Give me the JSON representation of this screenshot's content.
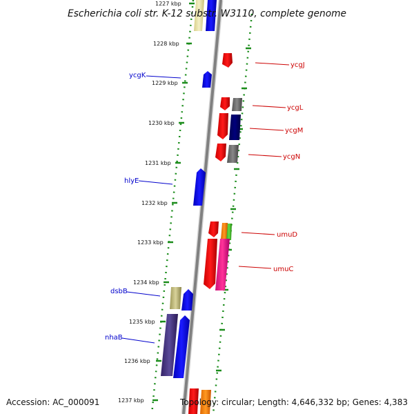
{
  "title": "Escherichia coli str. K-12 substr. W3110, complete genome",
  "footer": {
    "accession": "Accession: AC_000091",
    "summary": "Topology: circular; Length: 4,646,332 bp; Genes: 4,383"
  },
  "scale_labels": [
    "1227 kbp",
    "1228 kbp",
    "1229 kbp",
    "1230 kbp",
    "1231 kbp",
    "1232 kbp",
    "1233 kbp",
    "1234 kbp",
    "1235 kbp",
    "1236 kbp",
    "1237 kbp"
  ],
  "genes_left": [
    {
      "name": "ycgK",
      "color": "#0000cc"
    },
    {
      "name": "hlyE",
      "color": "#0000cc"
    },
    {
      "name": "dsbB",
      "color": "#0000cc"
    },
    {
      "name": "nhaB",
      "color": "#0000cc"
    }
  ],
  "genes_right": [
    {
      "name": "ycgJ",
      "color": "#cc0000"
    },
    {
      "name": "ycgL",
      "color": "#cc0000"
    },
    {
      "name": "ycgM",
      "color": "#cc0000"
    },
    {
      "name": "ycgN",
      "color": "#cc0000"
    },
    {
      "name": "umuD",
      "color": "#cc0000"
    },
    {
      "name": "umuC",
      "color": "#cc0000"
    }
  ],
  "colors": {
    "backbone": "#8c8c8c",
    "dots": "#1a8c1a",
    "forward_gene": "#ff0000",
    "reverse_gene": "#0000ff"
  }
}
